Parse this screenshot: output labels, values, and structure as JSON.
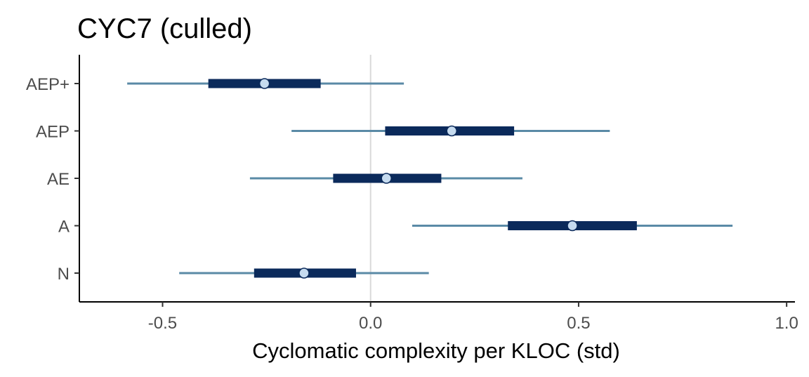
{
  "chart_data": {
    "type": "interval",
    "title": "CYC7 (culled)",
    "xlabel": "Cyclomatic complexity per KLOC (std)",
    "ylabel": "",
    "xlim": [
      -0.7,
      1.02
    ],
    "xticks": [
      -0.5,
      0.0,
      0.5,
      1.0
    ],
    "xtick_labels": [
      "-0.5",
      "0.0",
      "0.5",
      "1.0"
    ],
    "reference_line_x": 0.0,
    "grid": false,
    "legend": "none",
    "categories": [
      "AEP+",
      "AEP",
      "AE",
      "A",
      "N"
    ],
    "points": [
      {
        "label": "AEP+",
        "estimate": -0.255,
        "inner": [
          -0.39,
          -0.12
        ],
        "outer": [
          -0.585,
          0.08
        ]
      },
      {
        "label": "AEP",
        "estimate": 0.195,
        "inner": [
          0.035,
          0.345
        ],
        "outer": [
          -0.19,
          0.575
        ]
      },
      {
        "label": "AE",
        "estimate": 0.038,
        "inner": [
          -0.09,
          0.17
        ],
        "outer": [
          -0.29,
          0.365
        ]
      },
      {
        "label": "A",
        "estimate": 0.485,
        "inner": [
          0.33,
          0.64
        ],
        "outer": [
          0.1,
          0.87
        ]
      },
      {
        "label": "N",
        "estimate": -0.16,
        "inner": [
          -0.28,
          -0.035
        ],
        "outer": [
          -0.46,
          0.14
        ]
      }
    ],
    "colors": {
      "outer_interval": "#5a8aa6",
      "inner_interval": "#0b2a5b",
      "point_fill": "#c6dbef",
      "point_stroke": "#0b2a5b",
      "reference_line": "#d9d9d9",
      "axis": "#000000"
    }
  }
}
